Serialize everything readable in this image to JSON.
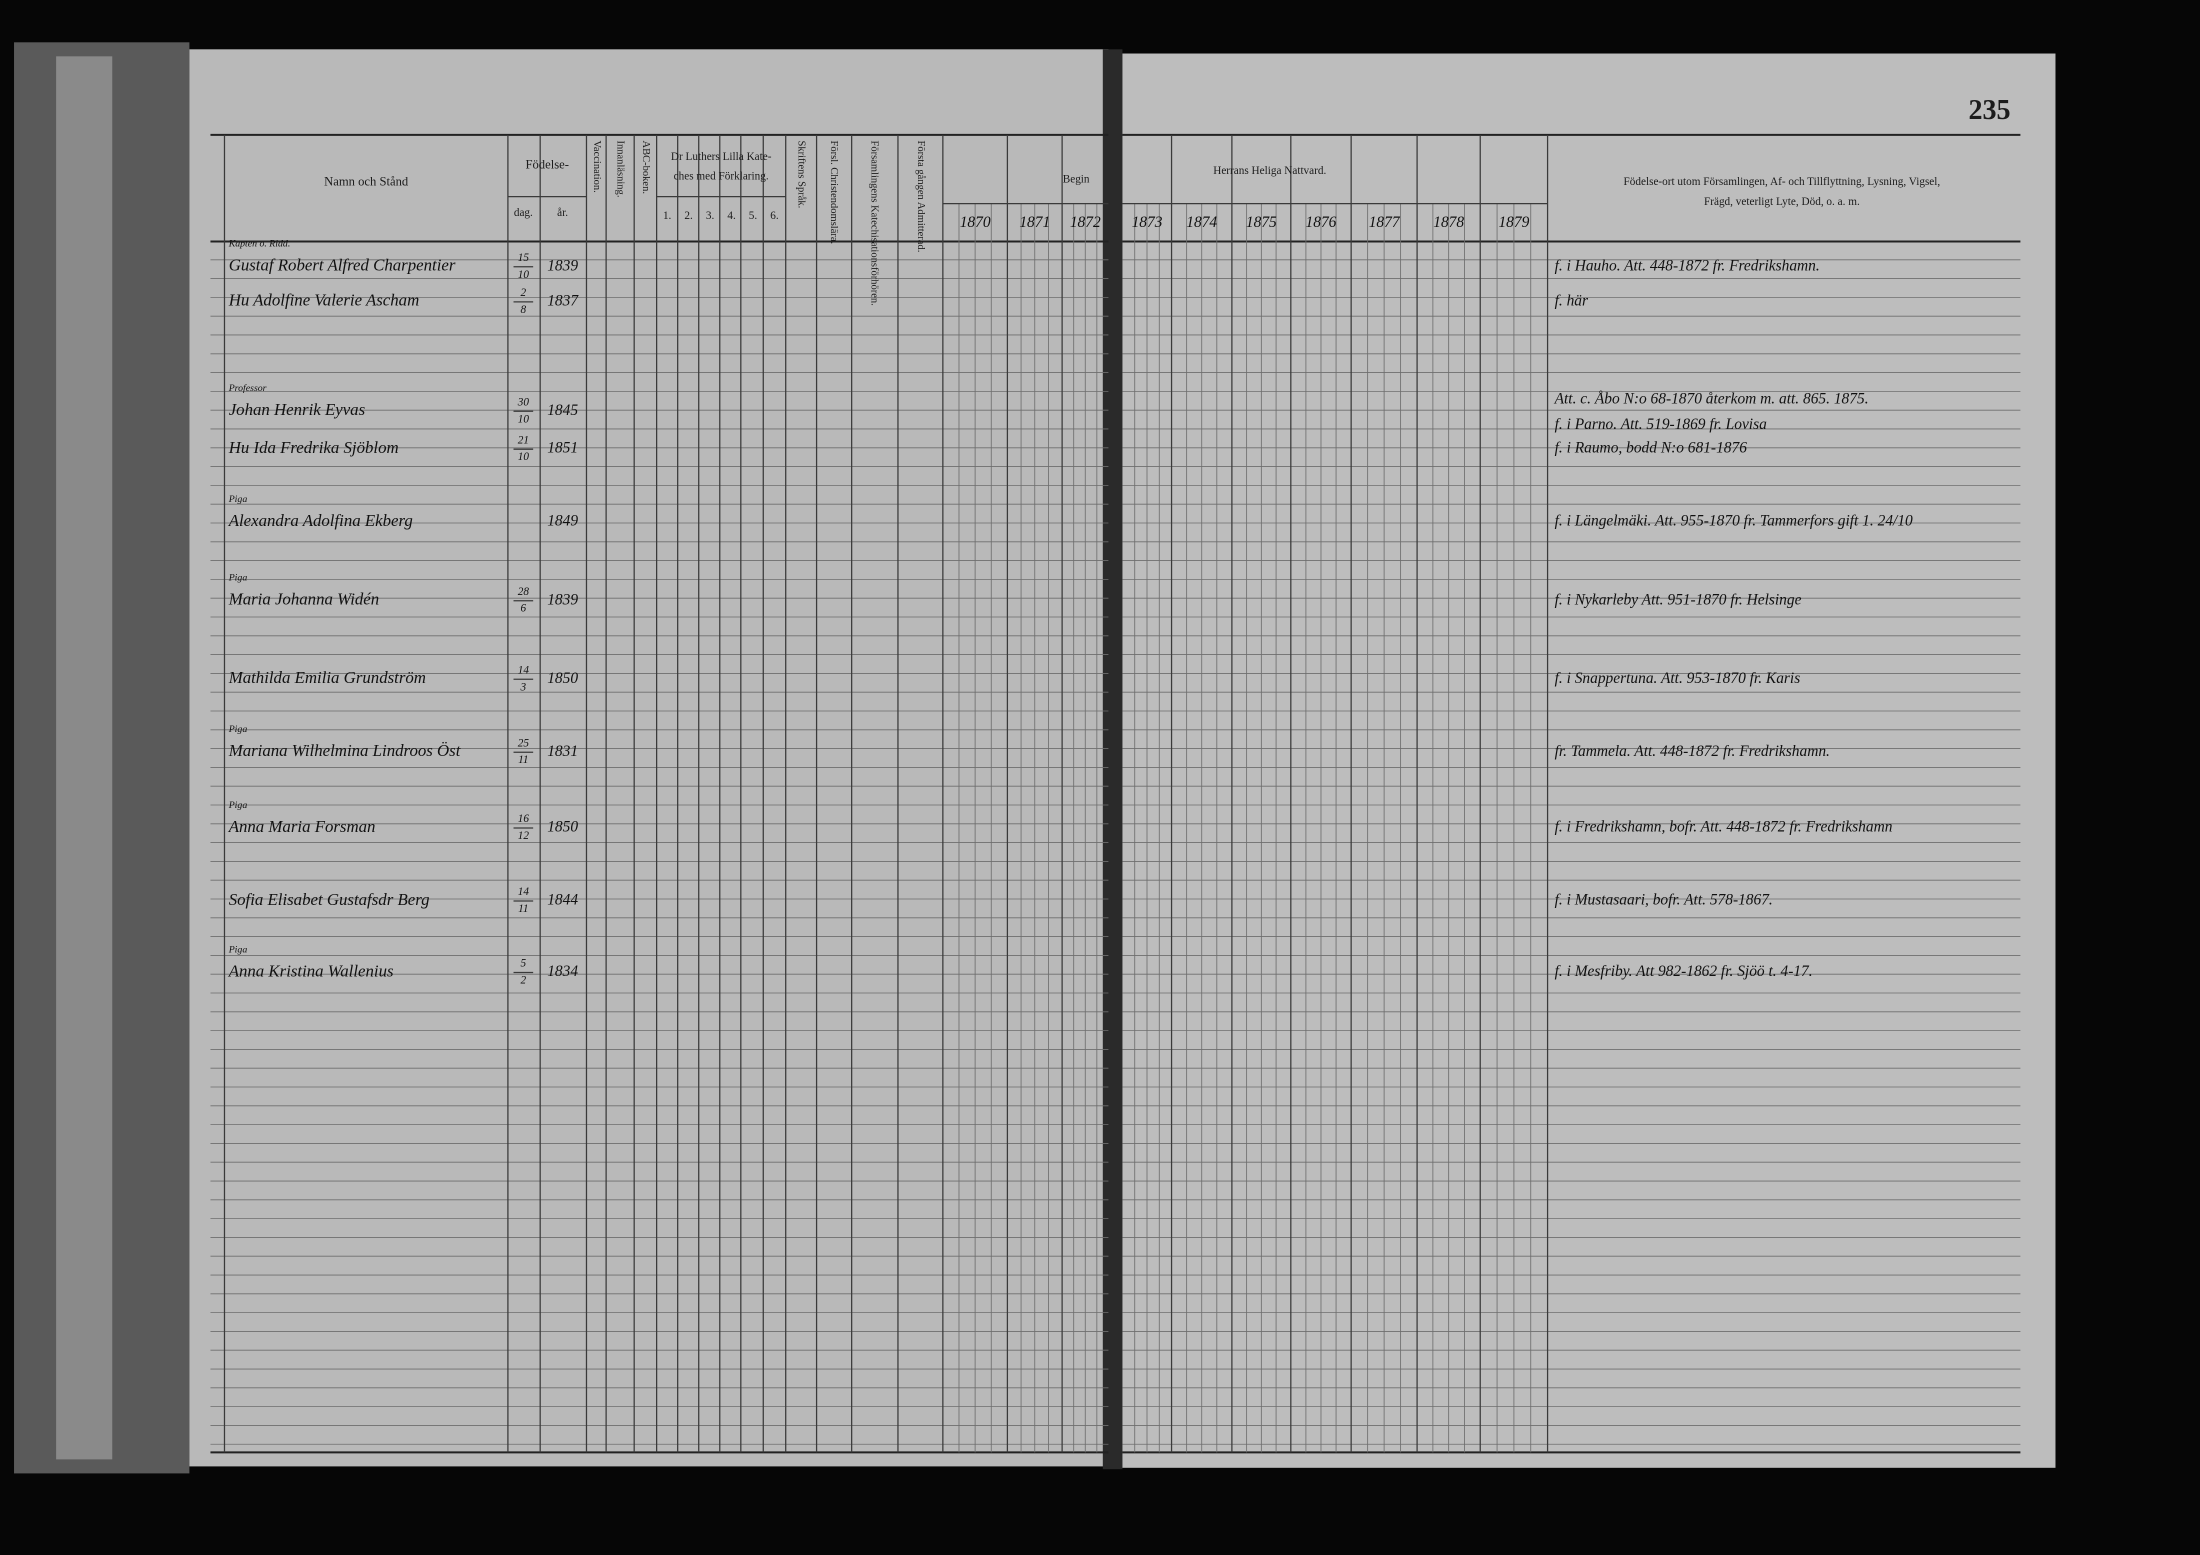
{
  "page_number": "235",
  "header": {
    "name": "Namn och Stånd",
    "birth": "Födelse-",
    "day": "dag.",
    "year": "år.",
    "vaccination": "Vaccination.",
    "reading": "Innanläsning.",
    "abc": "ABC-boken.",
    "catechism": [
      "Dr Luthers Lilla Kate-",
      "ches med Förklaring."
    ],
    "catechism_parts": [
      "1.",
      "2.",
      "3.",
      "4.",
      "5.",
      "6."
    ],
    "scripture": "Skriftens Språk.",
    "christian": "Försl. Christendomslära.",
    "parish": "Församlingens Katechisationsförhören.",
    "admitted": "Första gången Admitterad.",
    "begin": "Begin",
    "communion": "Herrans Heliga Nattvard.",
    "years": [
      "1870",
      "1871",
      "1872",
      "1873",
      "1874",
      "1875",
      "1876",
      "1877",
      "1878",
      "1879"
    ],
    "notes": [
      "Födelse-ort utom Församlingen, Af- och Tillflyttning, Lysning, Vigsel,",
      "Frägd, veterligt Lyte, Död, o. a. m."
    ]
  },
  "rows": [
    {
      "title": "Kapten o. Ridd.",
      "name": "Gustaf Robert Alfred Charpentier",
      "day": "15",
      "month": "10",
      "year": "1839",
      "notes": [
        "f. i Hauho. Att. 448-1872 fr. Fredrikshamn."
      ]
    },
    {
      "name": "Hu Adolfine Valerie Ascham",
      "day": "2",
      "month": "8",
      "year": "1837",
      "notes": [
        "f. här"
      ]
    },
    {
      "title": "Professor",
      "name": "Johan Henrik Eyvas",
      "day": "30",
      "month": "10",
      "year": "1845",
      "notes": [
        "Att. c. Åbo N:o 68-1870 återkom m. att. 865. 1875.",
        "f. i Parno. Att. 519-1869 fr. Lovisa"
      ]
    },
    {
      "name": "Hu Ida Fredrika Sjöblom",
      "day": "21",
      "month": "10",
      "year": "1851",
      "notes": [
        "f. i Raumo, bodd N:o 681-1876"
      ]
    },
    {
      "title": "Piga",
      "name": "Alexandra Adolfina Ekberg",
      "year": "1849",
      "notes": [
        "f. i Längelmäki. Att. 955-1870 fr. Tammerfors gift 1. 24/10"
      ]
    },
    {
      "title": "Piga",
      "name": "Maria Johanna Widén",
      "day": "28",
      "month": "6",
      "year": "1839",
      "notes": [
        "f. i Nykarleby Att. 951-1870 fr. Helsinge"
      ]
    },
    {
      "name": "Mathilda Emilia Grundström",
      "day": "14",
      "month": "3",
      "year": "1850",
      "notes": [
        "f. i Snappertuna. Att. 953-1870 fr. Karis"
      ]
    },
    {
      "title": "Piga",
      "name": "Mariana Wilhelmina Lindroos Öst",
      "day": "25",
      "month": "11",
      "year": "1831",
      "notes": [
        "fr. Tammela. Att. 448-1872 fr. Fredrikshamn."
      ]
    },
    {
      "title": "Piga",
      "name": "Anna Maria Forsman",
      "day": "16",
      "month": "12",
      "year": "1850",
      "notes": [
        "f. i Fredrikshamn, bofr. Att. 448-1872 fr. Fredrikshamn"
      ]
    },
    {
      "name": "Sofia Elisabet Gustafsdr Berg",
      "day": "14",
      "month": "11",
      "year": "1844",
      "notes": [
        "f. i Mustasaari, bofr. Att. 578-1867."
      ]
    },
    {
      "title": "Piga",
      "name": "Anna Kristina Wallenius",
      "day": "5",
      "month": "2",
      "year": "1834",
      "notes": [
        "f. i Mesfriby. Att 982-1862 fr. Sjöö t. 4-17."
      ]
    }
  ]
}
